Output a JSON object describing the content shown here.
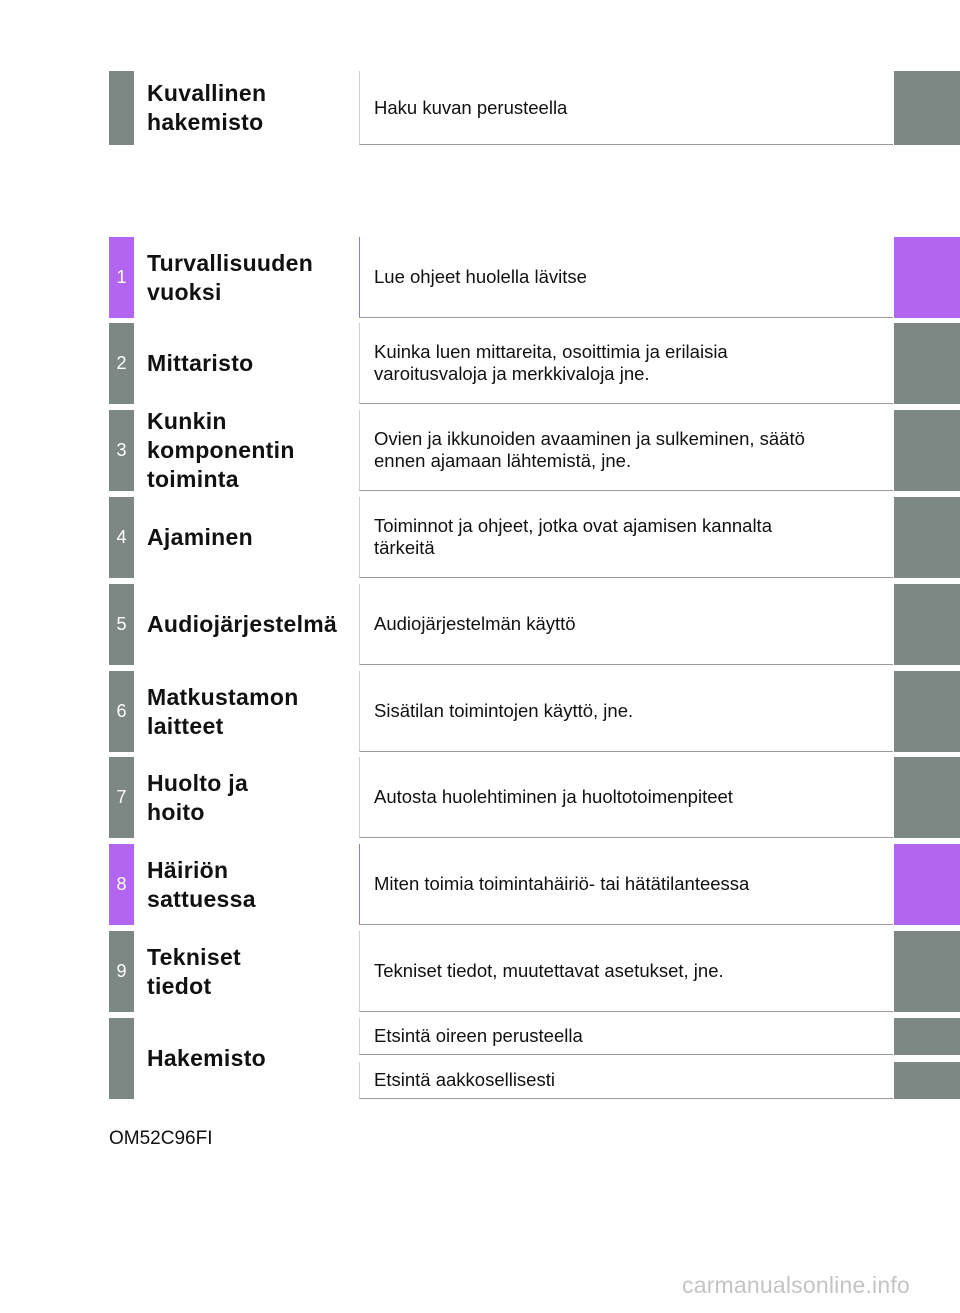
{
  "colors": {
    "gray": "#7d8783",
    "purple": "#b266f0"
  },
  "sections": [
    {
      "num": "",
      "title": "Kuvallinen\nhakemisto",
      "desc": "Haku kuvan perusteella",
      "accent": "gray"
    },
    {
      "num": "1",
      "title": "Turvallisuuden\nvuoksi",
      "desc": "Lue ohjeet huolella lävitse",
      "accent": "purple"
    },
    {
      "num": "2",
      "title": "Mittaristo",
      "desc": "Kuinka luen mittareita, osoittimia ja erilaisia\nvaroitusvaloja ja merkkivaloja jne.",
      "accent": "gray"
    },
    {
      "num": "3",
      "title": "Kunkin\nkomponentin\ntoiminta",
      "desc": "Ovien ja ikkunoiden avaaminen ja sulkeminen, säätö\nennen ajamaan lähtemistä, jne.",
      "accent": "gray"
    },
    {
      "num": "4",
      "title": "Ajaminen",
      "desc": "Toiminnot ja ohjeet, jotka ovat ajamisen kannalta\ntärkeitä",
      "accent": "gray"
    },
    {
      "num": "5",
      "title": "Audiojärjestelmä",
      "desc": "Audiojärjestelmän käyttö",
      "accent": "gray"
    },
    {
      "num": "6",
      "title": "Matkustamon\nlaitteet",
      "desc": "Sisätilan toimintojen käyttö, jne.",
      "accent": "gray"
    },
    {
      "num": "7",
      "title": "Huolto ja\nhoito",
      "desc": "Autosta huolehtiminen ja huoltotoimenpiteet",
      "accent": "gray"
    },
    {
      "num": "8",
      "title": "Häiriön\nsattuessa",
      "desc": "Miten toimia toimintahäiriö- tai hätätilanteessa",
      "accent": "purple"
    },
    {
      "num": "9",
      "title": "Tekniset\ntiedot",
      "desc": "Tekniset tiedot, muutettavat asetukset, jne.",
      "accent": "gray"
    }
  ],
  "index": {
    "title": "Hakemisto",
    "items": [
      "Etsintä oireen perusteella",
      "Etsintä aakkosellisesti"
    ]
  },
  "footer": {
    "code": "OM52C96FI"
  },
  "watermark": "carmanualsonline.info"
}
